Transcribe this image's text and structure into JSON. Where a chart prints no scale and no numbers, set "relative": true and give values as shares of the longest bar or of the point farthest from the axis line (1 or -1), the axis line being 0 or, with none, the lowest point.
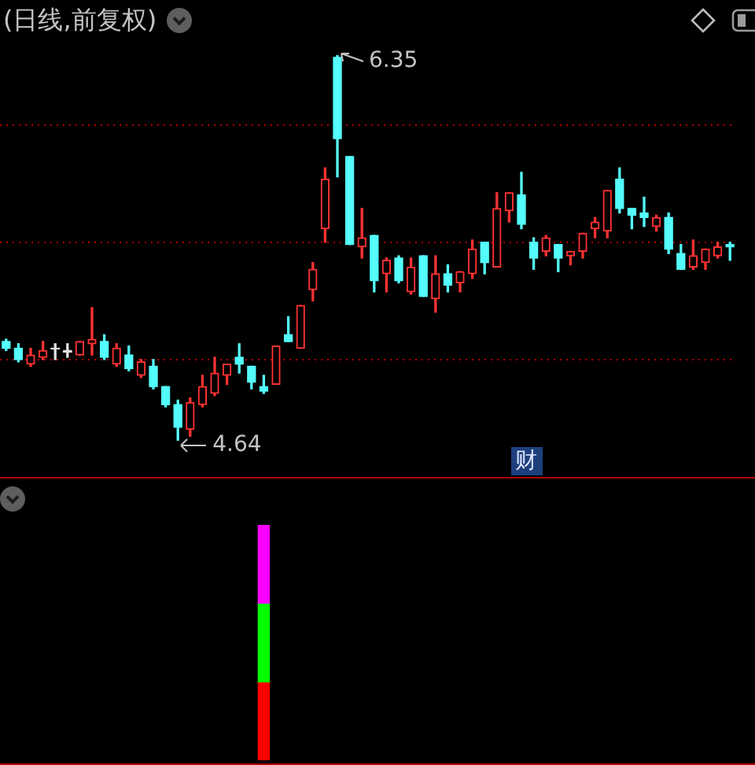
{
  "chart_data": [
    {
      "type": "candlestick",
      "title": "(日线,前复权)",
      "categories": [
        null,
        null,
        null,
        null,
        null,
        null,
        null,
        null,
        null,
        null,
        null,
        null,
        null,
        null,
        null,
        null,
        null,
        null,
        null,
        null,
        null,
        null,
        null,
        null,
        null,
        null,
        null,
        null,
        null,
        null,
        null,
        null,
        null,
        null,
        null,
        null,
        null,
        null,
        null,
        null,
        null,
        null,
        null,
        null,
        null,
        null,
        null,
        null,
        null,
        null,
        null,
        null,
        null,
        null,
        null,
        null,
        null,
        null,
        null,
        null
      ],
      "ohlc": [
        [
          5.08,
          5.09,
          5.04,
          5.05
        ],
        [
          5.05,
          5.07,
          4.99,
          5.0
        ],
        [
          4.98,
          5.05,
          4.97,
          5.02
        ],
        [
          5.01,
          5.08,
          5.0,
          5.04
        ],
        [
          5.05,
          5.07,
          5.0,
          5.05
        ],
        [
          5.04,
          5.07,
          5.01,
          5.04
        ],
        [
          5.02,
          5.08,
          5.02,
          5.08
        ],
        [
          5.07,
          5.23,
          5.02,
          5.09
        ],
        [
          5.08,
          5.11,
          5.0,
          5.01
        ],
        [
          4.98,
          5.07,
          4.97,
          5.05
        ],
        [
          5.02,
          5.06,
          4.95,
          4.96
        ],
        [
          4.93,
          5.0,
          4.92,
          4.99
        ],
        [
          4.97,
          5.0,
          4.87,
          4.88
        ],
        [
          4.88,
          4.88,
          4.79,
          4.8
        ],
        [
          4.8,
          4.82,
          4.64,
          4.7
        ],
        [
          4.69,
          4.83,
          4.66,
          4.81
        ],
        [
          4.8,
          4.93,
          4.79,
          4.88
        ],
        [
          4.85,
          5.01,
          4.84,
          4.94
        ],
        [
          4.93,
          4.98,
          4.89,
          4.98
        ],
        [
          5.01,
          5.07,
          4.94,
          4.98
        ],
        [
          4.97,
          4.97,
          4.87,
          4.9
        ],
        [
          4.88,
          4.93,
          4.85,
          4.86
        ],
        [
          4.89,
          5.06,
          4.89,
          5.06
        ],
        [
          5.11,
          5.19,
          5.08,
          5.08
        ],
        [
          5.05,
          5.24,
          5.05,
          5.24
        ],
        [
          5.31,
          5.43,
          5.26,
          5.4
        ],
        [
          5.58,
          5.85,
          5.52,
          5.8
        ],
        [
          6.34,
          6.35,
          5.81,
          5.98
        ],
        [
          5.9,
          5.9,
          5.51,
          5.51
        ],
        [
          5.5,
          5.67,
          5.45,
          5.54
        ],
        [
          5.55,
          5.55,
          5.3,
          5.35
        ],
        [
          5.38,
          5.45,
          5.3,
          5.44
        ],
        [
          5.45,
          5.46,
          5.34,
          5.35
        ],
        [
          5.3,
          5.45,
          5.29,
          5.41
        ],
        [
          5.46,
          5.46,
          5.28,
          5.28
        ],
        [
          5.27,
          5.46,
          5.21,
          5.38
        ],
        [
          5.38,
          5.42,
          5.3,
          5.33
        ],
        [
          5.34,
          5.39,
          5.3,
          5.39
        ],
        [
          5.38,
          5.53,
          5.36,
          5.49
        ],
        [
          5.52,
          5.52,
          5.38,
          5.43
        ],
        [
          5.41,
          5.74,
          5.41,
          5.67
        ],
        [
          5.66,
          5.74,
          5.61,
          5.74
        ],
        [
          5.73,
          5.83,
          5.58,
          5.6
        ],
        [
          5.52,
          5.54,
          5.4,
          5.45
        ],
        [
          5.48,
          5.55,
          5.46,
          5.54
        ],
        [
          5.51,
          5.51,
          5.39,
          5.45
        ],
        [
          5.46,
          5.48,
          5.42,
          5.48
        ],
        [
          5.48,
          5.56,
          5.45,
          5.56
        ],
        [
          5.58,
          5.63,
          5.54,
          5.61
        ],
        [
          5.57,
          5.75,
          5.54,
          5.75
        ],
        [
          5.8,
          5.85,
          5.65,
          5.67
        ],
        [
          5.67,
          5.67,
          5.58,
          5.64
        ],
        [
          5.65,
          5.72,
          5.59,
          5.63
        ],
        [
          5.59,
          5.64,
          5.57,
          5.63
        ],
        [
          5.63,
          5.65,
          5.47,
          5.49
        ],
        [
          5.47,
          5.51,
          5.4,
          5.4
        ],
        [
          5.41,
          5.53,
          5.4,
          5.46
        ],
        [
          5.43,
          5.49,
          5.4,
          5.49
        ],
        [
          5.46,
          5.52,
          5.45,
          5.5
        ],
        [
          5.51,
          5.52,
          5.44,
          5.5
        ]
      ],
      "colors": [
        "#54fcfc",
        "#54fcfc",
        "#ff3232",
        "#ff3232",
        "#e0e0e0",
        "#e0e0e0",
        "#ff3232",
        "#ff3232",
        "#54fcfc",
        "#ff3232",
        "#54fcfc",
        "#ff3232",
        "#54fcfc",
        "#54fcfc",
        "#54fcfc",
        "#ff3232",
        "#ff3232",
        "#ff3232",
        "#ff3232",
        "#54fcfc",
        "#54fcfc",
        "#54fcfc",
        "#ff3232",
        "#54fcfc",
        "#ff3232",
        "#ff3232",
        "#ff3232",
        "#54fcfc",
        "#54fcfc",
        "#ff3232",
        "#54fcfc",
        "#ff3232",
        "#54fcfc",
        "#ff3232",
        "#54fcfc",
        "#ff3232",
        "#54fcfc",
        "#ff3232",
        "#ff3232",
        "#54fcfc",
        "#ff3232",
        "#ff3232",
        "#54fcfc",
        "#54fcfc",
        "#ff3232",
        "#54fcfc",
        "#ff3232",
        "#ff3232",
        "#ff3232",
        "#ff3232",
        "#54fcfc",
        "#54fcfc",
        "#54fcfc",
        "#ff3232",
        "#54fcfc",
        "#54fcfc",
        "#ff3232",
        "#ff3232",
        "#ff3232",
        "#54fcfc"
      ],
      "yticks": [
        {
          "value": 5.0,
          "label": null
        },
        {
          "value": 5.52,
          "label": null
        },
        {
          "value": 6.04,
          "label": null
        }
      ],
      "grid": "y",
      "tick_labels": false,
      "annotations": [
        "6.35",
        "4.64",
        "财"
      ]
    },
    {
      "type": "bar",
      "stacked": true,
      "relative": true,
      "tick_labels": false,
      "categories": [
        null,
        null,
        null,
        null,
        null,
        null,
        null,
        null,
        null,
        null,
        null,
        null,
        null,
        null,
        null,
        null,
        null,
        null,
        null,
        null,
        null,
        null,
        null,
        null,
        null,
        null,
        null,
        null,
        null,
        null,
        null,
        null,
        null,
        null,
        null,
        null,
        null,
        null,
        null,
        null,
        null,
        null,
        null,
        null,
        null,
        null,
        null,
        null,
        null,
        null,
        null,
        null,
        null,
        null,
        null,
        null,
        null,
        null,
        null,
        null
      ],
      "series": [
        {
          "color": "#ff0000",
          "values": [
            null,
            null,
            null,
            null,
            null,
            null,
            null,
            null,
            null,
            null,
            null,
            null,
            null,
            null,
            null,
            null,
            null,
            null,
            null,
            null,
            null,
            0.33,
            null,
            null,
            null,
            null,
            null,
            null,
            null,
            null,
            null,
            null,
            null,
            null,
            null,
            null,
            null,
            null,
            null,
            null,
            null,
            null,
            null,
            null,
            null,
            null,
            null,
            null,
            null,
            null,
            null,
            null,
            null,
            null,
            null,
            null,
            null,
            null,
            null,
            null
          ]
        },
        {
          "color": "#00ff00",
          "values": [
            null,
            null,
            null,
            null,
            null,
            null,
            null,
            null,
            null,
            null,
            null,
            null,
            null,
            null,
            null,
            null,
            null,
            null,
            null,
            null,
            null,
            0.335,
            null,
            null,
            null,
            null,
            null,
            null,
            null,
            null,
            null,
            null,
            null,
            null,
            null,
            null,
            null,
            null,
            null,
            null,
            null,
            null,
            null,
            null,
            null,
            null,
            null,
            null,
            null,
            null,
            null,
            null,
            null,
            null,
            null,
            null,
            null,
            null,
            null,
            null
          ]
        },
        {
          "color": "#ff00ff",
          "values": [
            null,
            null,
            null,
            null,
            null,
            null,
            null,
            null,
            null,
            null,
            null,
            null,
            null,
            null,
            null,
            null,
            null,
            null,
            null,
            null,
            null,
            0.335,
            null,
            null,
            null,
            null,
            null,
            null,
            null,
            null,
            null,
            null,
            null,
            null,
            null,
            null,
            null,
            null,
            null,
            null,
            null,
            null,
            null,
            null,
            null,
            null,
            null,
            null,
            null,
            null,
            null,
            null,
            null,
            null,
            null,
            null,
            null,
            null,
            null,
            null
          ]
        }
      ]
    }
  ]
}
